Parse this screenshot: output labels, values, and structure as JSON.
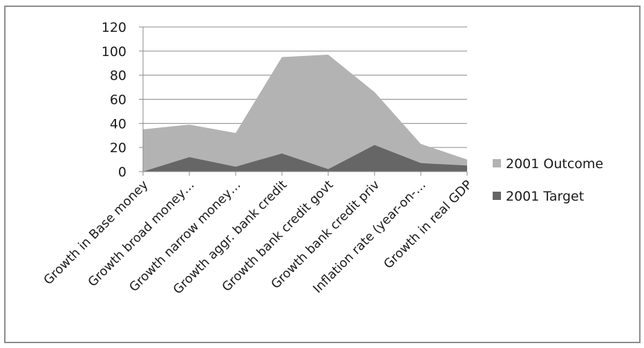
{
  "chart_data": {
    "type": "area",
    "stacking": "overlapping",
    "categories": [
      "Growth in Base money",
      "Growth broad money…",
      "Growth narrow  money…",
      "Growth aggr. bank credit",
      "Growth bank credit govt",
      "Growth bank credit priv",
      "Inflation rate (year-on-…",
      "Growth in real GDP"
    ],
    "series": [
      {
        "name": "2001 Outcome",
        "color": "#b3b3b3",
        "values": [
          35,
          39,
          32,
          95,
          97,
          66,
          23,
          10
        ]
      },
      {
        "name": "2001 Target",
        "color": "#666666",
        "values": [
          0,
          12,
          4,
          15,
          2,
          22,
          7,
          5
        ]
      }
    ],
    "ylim": [
      0,
      120
    ],
    "yticks": [
      "0",
      "20",
      "40",
      "60",
      "80",
      "100",
      "120"
    ],
    "grid": true,
    "legend_position": "right",
    "title": "",
    "xlabel": "",
    "ylabel": ""
  }
}
